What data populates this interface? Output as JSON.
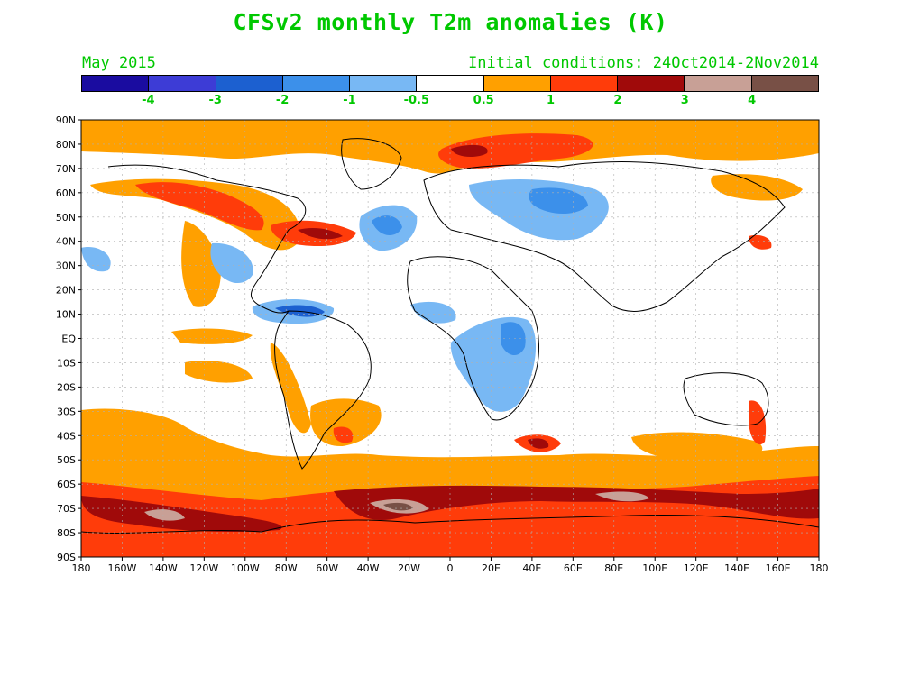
{
  "title": "CFSv2 monthly T2m anomalies (K)",
  "subtitle_left": "May 2015",
  "subtitle_right": "Initial conditions: 24Oct2014-2Nov2014",
  "colorbar": {
    "colors": [
      "#1a0ca0",
      "#3d3cd6",
      "#1c60d0",
      "#3c90ea",
      "#78b8f4",
      "#ffffff",
      "#ffa000",
      "#ff3c0a",
      "#a00a0a",
      "#c8a096",
      "#785046"
    ],
    "labels": [
      "-4",
      "-3",
      "-2",
      "-1",
      "-0.5",
      "0.5",
      "1",
      "2",
      "3",
      "4"
    ]
  },
  "map": {
    "lat_labels": [
      "90N",
      "80N",
      "70N",
      "60N",
      "50N",
      "40N",
      "30N",
      "20N",
      "10N",
      "EQ",
      "10S",
      "20S",
      "30S",
      "40S",
      "50S",
      "60S",
      "70S",
      "80S",
      "90S"
    ],
    "lon_labels": [
      "180",
      "160W",
      "140W",
      "120W",
      "100W",
      "80W",
      "60W",
      "40W",
      "20W",
      "0",
      "20E",
      "40E",
      "60E",
      "80E",
      "100E",
      "120E",
      "140E",
      "160E",
      "180"
    ]
  }
}
